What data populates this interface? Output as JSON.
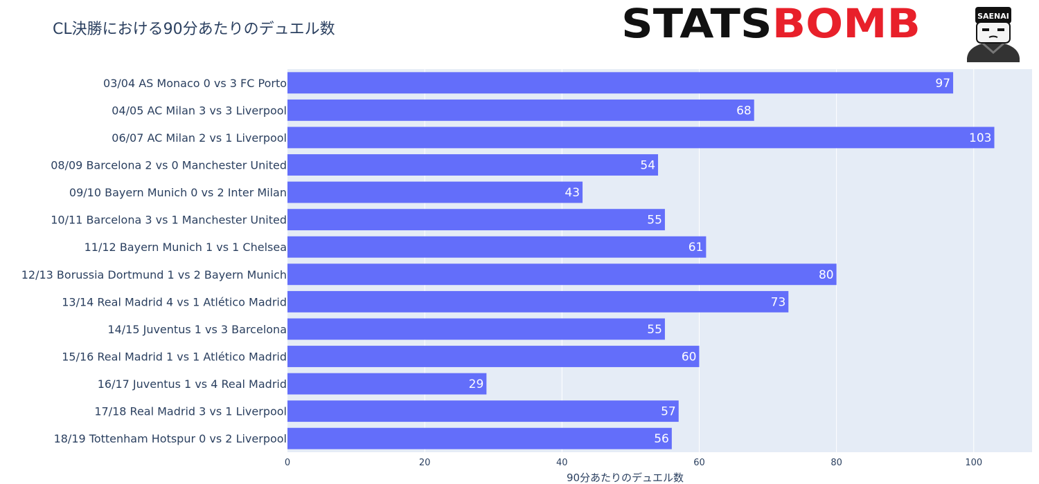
{
  "title": "CL決勝における90分あたりのデュエル数",
  "logos": {
    "statsbomb_text": "STATSBOMB",
    "saenai_text": "SAENAI"
  },
  "colors": {
    "bar": "#636efa",
    "plot_bg": "#e5ecf6",
    "grid": "#ffffff",
    "text": "#2a3f5f",
    "statsbomb_black": "#111111",
    "statsbomb_red": "#e8202a"
  },
  "chart_data": {
    "type": "bar",
    "orientation": "horizontal",
    "title": "CL決勝における90分あたりのデュエル数",
    "xlabel": "90分あたりのデュエル数",
    "ylabel": "",
    "xlim": [
      0,
      108.5
    ],
    "xticks": [
      0,
      20,
      40,
      60,
      80,
      100
    ],
    "grid": true,
    "categories": [
      "03/04 AS Monaco 0 vs 3 FC Porto",
      "04/05 AC Milan 3 vs 3 Liverpool",
      "06/07 AC Milan 2 vs 1 Liverpool",
      "08/09 Barcelona 2 vs 0 Manchester United",
      "09/10 Bayern Munich 0 vs 2 Inter Milan",
      "10/11 Barcelona 3 vs 1 Manchester United",
      "11/12 Bayern Munich 1 vs 1 Chelsea",
      "12/13 Borussia Dortmund 1 vs 2 Bayern Munich",
      "13/14 Real Madrid 4 vs 1 Atlético Madrid",
      "14/15 Juventus 1 vs 3 Barcelona",
      "15/16 Real Madrid 1 vs 1 Atlético Madrid",
      "16/17 Juventus 1 vs 4 Real Madrid",
      "17/18 Real Madrid 3 vs 1 Liverpool",
      "18/19 Tottenham Hotspur 0 vs 2 Liverpool"
    ],
    "values": [
      97,
      68,
      103,
      54,
      43,
      55,
      61,
      80,
      73,
      55,
      60,
      29,
      57,
      56
    ]
  }
}
